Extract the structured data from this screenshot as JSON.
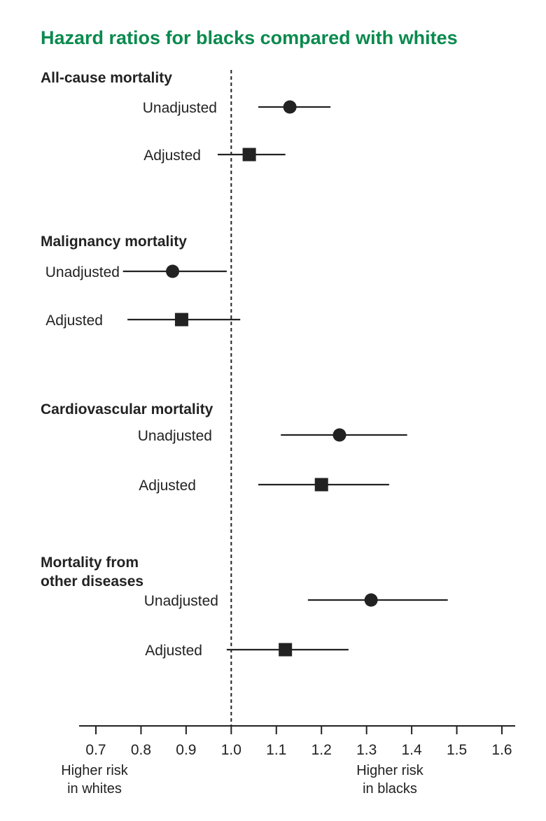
{
  "chart_data": {
    "type": "forest",
    "title": "Hazard ratios for blacks compared with whites",
    "xlim": [
      0.7,
      1.6
    ],
    "reference_line": 1.0,
    "x_ticks": [
      0.7,
      0.8,
      0.9,
      1.0,
      1.1,
      1.2,
      1.3,
      1.4,
      1.5,
      1.6
    ],
    "x_tick_labels": [
      "0.7",
      "0.8",
      "0.9",
      "1.0",
      "1.1",
      "1.2",
      "1.3",
      "1.4",
      "1.5",
      "1.6"
    ],
    "left_note": [
      "Higher risk",
      "in whites"
    ],
    "right_note": [
      "Higher risk",
      "in blacks"
    ],
    "groups": [
      {
        "title": [
          "All-cause mortality"
        ],
        "rows": [
          {
            "label": "Unadjusted",
            "marker": "circle",
            "estimate": 1.13,
            "lower": 1.06,
            "upper": 1.22
          },
          {
            "label": "Adjusted",
            "marker": "square",
            "estimate": 1.04,
            "lower": 0.97,
            "upper": 1.12
          }
        ]
      },
      {
        "title": [
          "Malignancy mortality"
        ],
        "rows": [
          {
            "label": "Unadjusted",
            "marker": "circle",
            "estimate": 0.87,
            "lower": 0.76,
            "upper": 0.99
          },
          {
            "label": "Adjusted",
            "marker": "square",
            "estimate": 0.89,
            "lower": 0.77,
            "upper": 1.02
          }
        ]
      },
      {
        "title": [
          "Cardiovascular mortality"
        ],
        "rows": [
          {
            "label": "Unadjusted",
            "marker": "circle",
            "estimate": 1.24,
            "lower": 1.11,
            "upper": 1.39
          },
          {
            "label": "Adjusted",
            "marker": "square",
            "estimate": 1.2,
            "lower": 1.06,
            "upper": 1.35
          }
        ]
      },
      {
        "title": [
          "Mortality from",
          "other diseases"
        ],
        "rows": [
          {
            "label": "Unadjusted",
            "marker": "circle",
            "estimate": 1.31,
            "lower": 1.17,
            "upper": 1.48
          },
          {
            "label": "Adjusted",
            "marker": "square",
            "estimate": 1.12,
            "lower": 0.99,
            "upper": 1.26
          }
        ]
      }
    ],
    "colors": {
      "title": "#0a8a4e",
      "ink": "#222222"
    }
  }
}
